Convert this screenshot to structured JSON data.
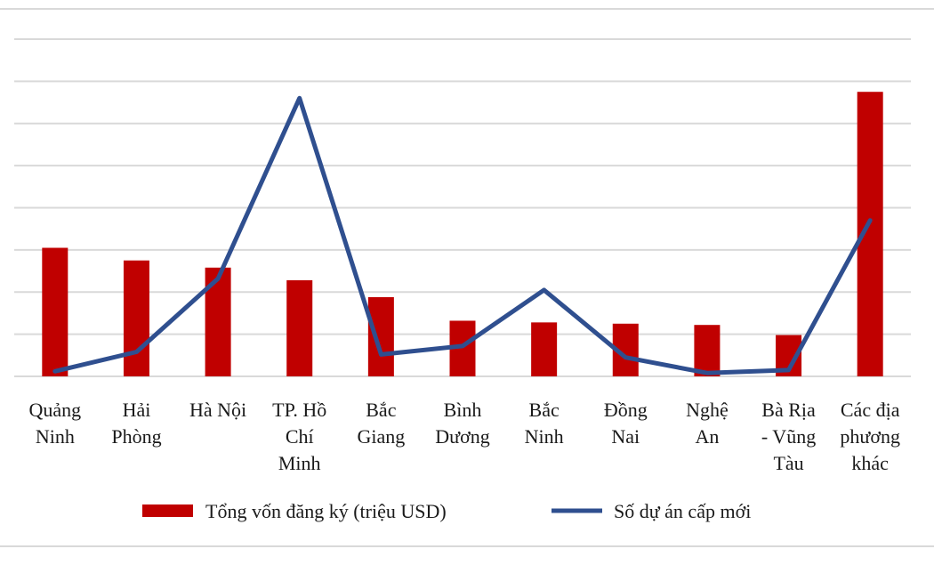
{
  "chart_data": {
    "type": "bar",
    "categories": [
      [
        "Quảng",
        "Ninh"
      ],
      [
        "Hải",
        "Phòng"
      ],
      [
        "Hà Nội"
      ],
      [
        "TP. Hồ",
        "Chí",
        "Minh"
      ],
      [
        "Bắc",
        "Giang"
      ],
      [
        "Bình",
        "Dương"
      ],
      [
        "Bắc",
        "Ninh"
      ],
      [
        "Đồng",
        "Nai"
      ],
      [
        "Nghệ",
        "An"
      ],
      [
        "Bà Rịa",
        "- Vũng",
        "Tàu"
      ],
      [
        "Các địa",
        "phương",
        "khác"
      ]
    ],
    "series": [
      {
        "name": "Tổng vốn đăng ký (triệu USD)",
        "type": "bar",
        "color": "#C00000",
        "values": [
          3.05,
          2.75,
          2.58,
          2.28,
          1.88,
          1.32,
          1.28,
          1.25,
          1.22,
          0.98,
          6.75
        ]
      },
      {
        "name": "Số dự án cấp mới",
        "type": "line",
        "color": "#2F4F8F",
        "values": [
          0.12,
          0.58,
          2.32,
          6.6,
          0.52,
          0.72,
          2.05,
          0.45,
          0.08,
          0.15,
          3.7
        ]
      }
    ],
    "ylim": [
      0,
      8
    ],
    "y_ticks_labeled": false,
    "grid": true,
    "legend_position": "bottom"
  }
}
